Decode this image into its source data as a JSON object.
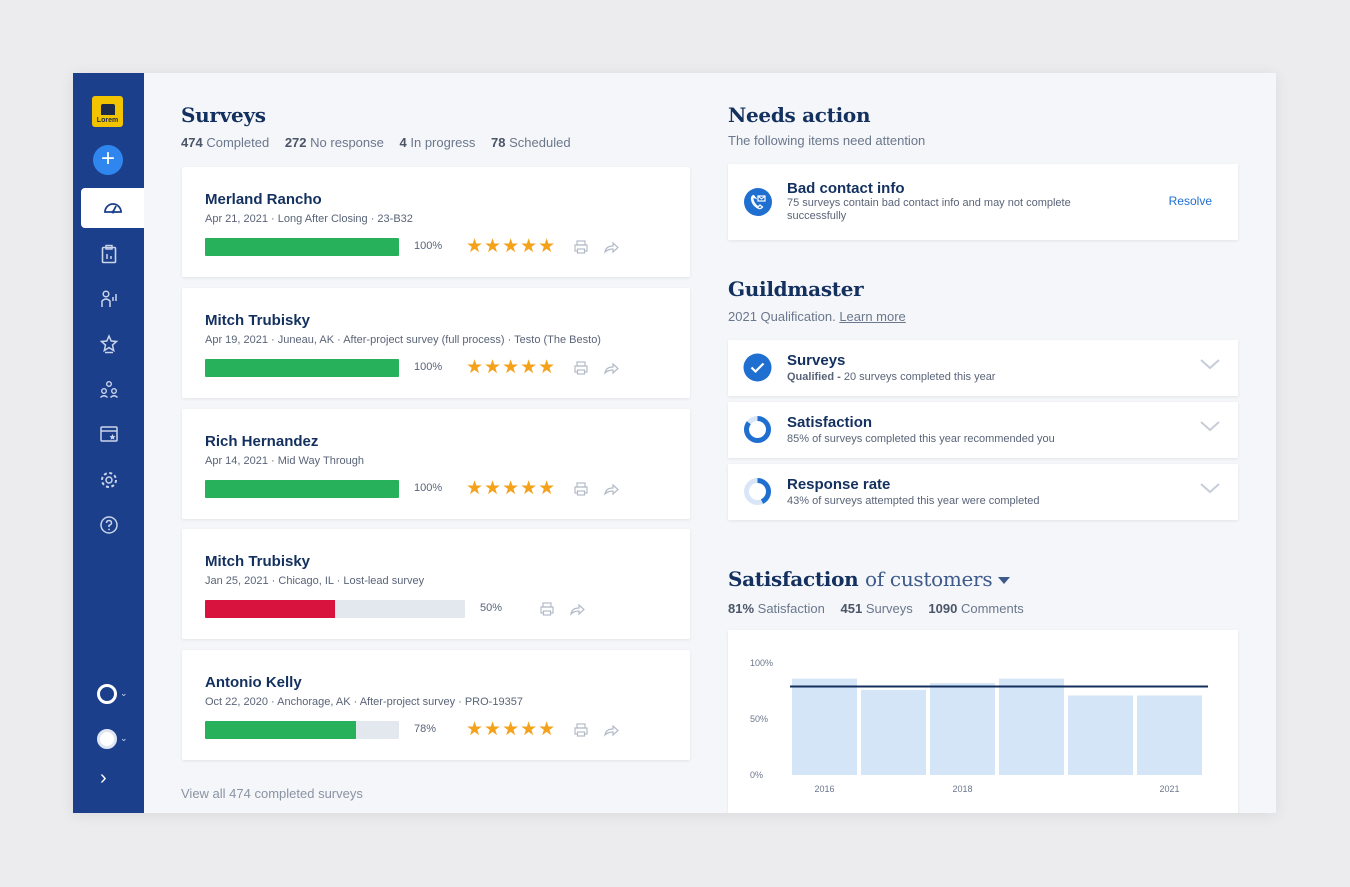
{
  "sidebar": {
    "logo_text": "Lorem",
    "add_label": "+",
    "nav": [
      "dashboard",
      "surveys",
      "reports",
      "reviews",
      "team",
      "website",
      "settings",
      "help"
    ],
    "expand_label": "›"
  },
  "surveys": {
    "title": "Surveys",
    "stats": [
      {
        "count": "474",
        "label": "Completed"
      },
      {
        "count": "272",
        "label": "No response"
      },
      {
        "count": "4",
        "label": "In progress"
      },
      {
        "count": "78",
        "label": "Scheduled"
      }
    ],
    "items": [
      {
        "name": "Merland Rancho",
        "meta": "Apr 21, 2021  · Long After Closing · 23-B32",
        "progress": 100,
        "progress_label": "100%",
        "stars": "★★★★★",
        "status": "complete"
      },
      {
        "name": "Mitch Trubisky",
        "meta": "Apr 19, 2021 · Juneau, AK · After-project survey (full process) · Testo (The Besto)",
        "progress": 100,
        "progress_label": "100%",
        "stars": "★★★★★",
        "status": "complete"
      },
      {
        "name": "Rich Hernandez",
        "meta": "Apr 14, 2021  · Mid Way Through",
        "progress": 100,
        "progress_label": "100%",
        "stars": "★★★★★",
        "status": "complete"
      },
      {
        "name": "Mitch Trubisky",
        "meta": "Jan 25, 2021 · Chicago, IL · Lost-lead survey",
        "progress": 50,
        "progress_label": "50%",
        "stars": "",
        "status": "partial"
      },
      {
        "name": "Antonio Kelly",
        "meta": "Oct 22, 2020 · Anchorage, AK · After-project survey · PRO-19357",
        "progress": 78,
        "progress_label": "78%",
        "stars": "★★★★★",
        "status": "complete"
      }
    ],
    "view_all": "View all 474 completed surveys"
  },
  "needs_action": {
    "title": "Needs action",
    "subtitle": "The following items need attention",
    "item": {
      "title": "Bad contact info",
      "desc": "75 surveys contain bad contact info and may not complete successfully",
      "action": "Resolve"
    }
  },
  "guildmaster": {
    "title": "Guildmaster",
    "subtitle_prefix": "2021 Qualification.",
    "learn_more": "Learn more",
    "items": [
      {
        "title": "Surveys",
        "status": "Qualified -",
        "desc": "20 surveys completed this year",
        "value": 1.0,
        "icon": "check-circle-icon"
      },
      {
        "title": "Satisfaction",
        "status": "",
        "desc": "85% of surveys completed this year recommended you",
        "value": 0.85,
        "icon": "ring-progress-icon"
      },
      {
        "title": "Response rate",
        "status": "",
        "desc": "43% of surveys attempted this year were completed",
        "value": 0.43,
        "icon": "ring-progress-icon"
      }
    ]
  },
  "satisfaction": {
    "title_bold": "Satisfaction",
    "title_light": "of customers",
    "stats": [
      {
        "count": "81%",
        "label": "Satisfaction"
      },
      {
        "count": "451",
        "label": "Surveys"
      },
      {
        "count": "1090",
        "label": "Comments"
      }
    ]
  },
  "chart_data": {
    "type": "bar",
    "x": [
      2016,
      2017,
      2018,
      2019,
      2020,
      2021
    ],
    "values": [
      86,
      76,
      82,
      86,
      71,
      71
    ],
    "reference_line": 79,
    "y_ticks": [
      "100%",
      "50%",
      "0%"
    ],
    "x_tick_labels": [
      "2016",
      "",
      "2018",
      "",
      "",
      "2021"
    ],
    "ylim": [
      0,
      100
    ],
    "colors": {
      "bar": "#d3e5f6",
      "line": "#13305f"
    }
  },
  "colors": {
    "sidebar": "#1b3f8b",
    "accent": "#1f6fd1",
    "success": "#27b15a",
    "danger": "#d8143e",
    "star": "#f5a21b"
  }
}
